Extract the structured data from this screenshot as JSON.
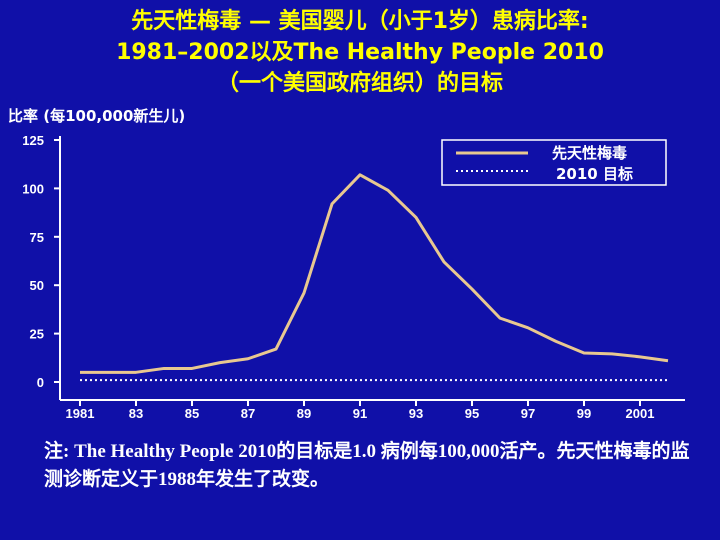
{
  "title": {
    "line1": "先天性梅毒 — 美国婴儿（小于1岁）患病比率:",
    "line2": "1981–2002以及The Healthy People 2010",
    "line3": "（一个美国政府组织）的目标"
  },
  "note": "注: The Healthy People 2010的目标是1.0 病例每100,000活产。先天性梅毒的监测诊断定义于1988年发生了改变。",
  "colors": {
    "background": "#1010a8",
    "title": "#ffff00",
    "line": "#e8c890",
    "text": "#ffffff"
  },
  "chart_data": {
    "type": "line",
    "ylabel": "比率 (每100,000新生儿)",
    "xlabel": "",
    "ylim": [
      0,
      125
    ],
    "xlim": [
      1981,
      2002
    ],
    "yticks": [
      "0",
      "25",
      "50",
      "75",
      "100",
      "125"
    ],
    "xticks": [
      "1981",
      "83",
      "85",
      "87",
      "89",
      "91",
      "93",
      "95",
      "97",
      "99",
      "2001"
    ],
    "x": [
      1981,
      1982,
      1983,
      1984,
      1985,
      1986,
      1987,
      1988,
      1989,
      1990,
      1991,
      1992,
      1993,
      1994,
      1995,
      1996,
      1997,
      1998,
      1999,
      2000,
      2001,
      2002
    ],
    "series": [
      {
        "name": "先天性梅毒",
        "values": [
          5,
          5,
          5,
          7,
          7,
          10,
          12,
          17,
          46,
          92,
          107,
          99,
          85,
          62,
          48,
          33,
          28,
          21,
          15,
          14.5,
          13,
          11
        ]
      },
      {
        "name": "2010 目标",
        "values": [
          1,
          1,
          1,
          1,
          1,
          1,
          1,
          1,
          1,
          1,
          1,
          1,
          1,
          1,
          1,
          1,
          1,
          1,
          1,
          1,
          1,
          1
        ]
      }
    ],
    "grid": false,
    "legend": "top-right"
  }
}
